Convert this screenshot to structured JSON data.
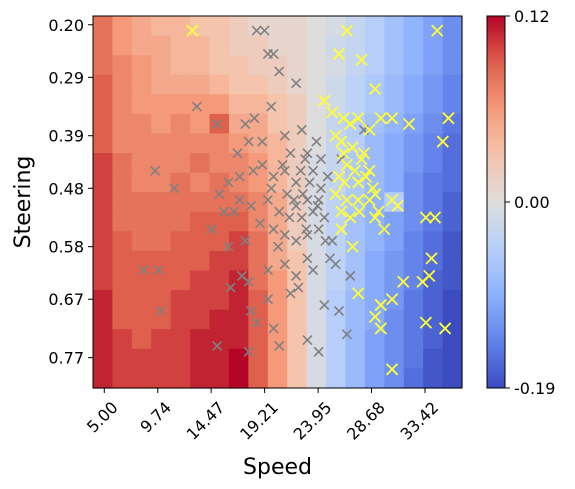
{
  "chart_data": {
    "type": "heatmap",
    "xlabel": "Speed",
    "ylabel": "Steering",
    "x_ticks": [
      "5.00",
      "9.74",
      "14.47",
      "19.21",
      "23.95",
      "28.68",
      "33.42"
    ],
    "y_ticks": [
      "0.20",
      "0.29",
      "0.39",
      "0.48",
      "0.58",
      "0.67",
      "0.77"
    ],
    "x_range": [
      4.0,
      36.7
    ],
    "y_range": [
      0.185,
      0.822
    ],
    "x_tick_values": [
      5.0,
      9.74,
      14.47,
      19.21,
      23.95,
      28.68,
      33.42
    ],
    "y_tick_values": [
      0.2,
      0.29,
      0.39,
      0.48,
      0.58,
      0.67,
      0.77
    ],
    "colorbar": {
      "colormap": "coolwarm",
      "min": -0.19,
      "max": 0.12,
      "ticks": [
        "0.12",
        "0.00",
        "-0.19"
      ],
      "tick_values": [
        0.12,
        0.0,
        -0.19
      ]
    },
    "grid": false,
    "rows": 19,
    "cols": 19,
    "heatmap_values": [
      [
        0.08,
        0.06,
        0.05,
        0.04,
        0.04,
        0.03,
        0.03,
        0.02,
        0.01,
        0.01,
        0.01,
        0.0,
        -0.01,
        -0.03,
        -0.05,
        -0.07,
        -0.09,
        -0.11,
        -0.13
      ],
      [
        0.08,
        0.06,
        0.05,
        0.05,
        0.04,
        0.04,
        0.03,
        0.02,
        0.02,
        0.01,
        0.01,
        0.0,
        -0.02,
        -0.03,
        -0.05,
        -0.07,
        -0.09,
        -0.11,
        -0.13
      ],
      [
        0.08,
        0.07,
        0.06,
        0.05,
        0.04,
        0.04,
        0.03,
        0.03,
        0.02,
        0.02,
        0.01,
        0.0,
        -0.01,
        -0.03,
        -0.05,
        -0.07,
        -0.09,
        -0.11,
        -0.13
      ],
      [
        0.09,
        0.07,
        0.06,
        0.05,
        0.05,
        0.05,
        0.04,
        0.03,
        0.03,
        0.02,
        0.01,
        0.0,
        -0.02,
        -0.04,
        -0.06,
        -0.08,
        -0.1,
        -0.12,
        -0.14
      ],
      [
        0.09,
        0.07,
        0.06,
        0.06,
        0.06,
        0.06,
        0.06,
        0.04,
        0.04,
        0.03,
        0.02,
        0.0,
        -0.02,
        -0.04,
        -0.06,
        -0.08,
        -0.1,
        -0.12,
        -0.14
      ],
      [
        0.09,
        0.07,
        0.07,
        0.06,
        0.07,
        0.06,
        0.09,
        0.05,
        0.05,
        0.03,
        0.02,
        0.0,
        -0.03,
        -0.05,
        -0.07,
        -0.09,
        -0.11,
        -0.13,
        -0.15
      ],
      [
        0.09,
        0.07,
        0.07,
        0.07,
        0.07,
        0.07,
        0.07,
        0.06,
        0.05,
        0.04,
        0.02,
        0.0,
        -0.03,
        -0.05,
        -0.08,
        -0.1,
        -0.12,
        -0.14,
        -0.16
      ],
      [
        0.1,
        0.08,
        0.07,
        0.07,
        0.07,
        0.08,
        0.07,
        0.07,
        0.06,
        0.04,
        0.02,
        -0.01,
        -0.03,
        -0.06,
        -0.08,
        -0.1,
        -0.12,
        -0.14,
        -0.16
      ],
      [
        0.1,
        0.08,
        0.07,
        0.07,
        0.08,
        0.07,
        0.08,
        0.07,
        0.06,
        0.04,
        0.02,
        -0.01,
        -0.03,
        -0.06,
        -0.08,
        -0.1,
        -0.13,
        -0.15,
        -0.16
      ],
      [
        0.1,
        0.08,
        0.08,
        0.08,
        0.08,
        0.08,
        0.08,
        0.08,
        0.07,
        0.05,
        0.02,
        -0.01,
        -0.04,
        -0.06,
        -0.09,
        -0.05,
        -0.13,
        -0.15,
        -0.17
      ],
      [
        0.1,
        0.08,
        0.08,
        0.08,
        0.08,
        0.09,
        0.09,
        0.09,
        0.07,
        0.05,
        0.02,
        -0.01,
        -0.04,
        -0.07,
        -0.09,
        -0.11,
        -0.13,
        -0.15,
        -0.17
      ],
      [
        0.1,
        0.09,
        0.08,
        0.08,
        0.09,
        0.09,
        0.09,
        0.1,
        0.08,
        0.05,
        0.02,
        -0.01,
        -0.04,
        -0.07,
        -0.09,
        -0.11,
        -0.14,
        -0.16,
        -0.18
      ],
      [
        0.1,
        0.09,
        0.09,
        0.09,
        0.09,
        0.09,
        0.1,
        0.1,
        0.08,
        0.05,
        0.03,
        -0.01,
        -0.04,
        -0.07,
        -0.1,
        -0.12,
        -0.14,
        -0.16,
        -0.18
      ],
      [
        0.1,
        0.09,
        0.09,
        0.09,
        0.09,
        0.1,
        0.1,
        0.11,
        0.08,
        0.06,
        0.03,
        -0.01,
        -0.04,
        -0.07,
        -0.1,
        -0.12,
        -0.14,
        -0.17,
        -0.18
      ],
      [
        0.11,
        0.09,
        0.09,
        0.09,
        0.1,
        0.1,
        0.1,
        0.11,
        0.09,
        0.06,
        0.03,
        -0.01,
        -0.05,
        -0.08,
        -0.1,
        -0.12,
        -0.15,
        -0.17,
        -0.19
      ],
      [
        0.11,
        0.09,
        0.09,
        0.09,
        0.1,
        0.1,
        0.11,
        0.11,
        0.09,
        0.06,
        0.03,
        -0.01,
        -0.05,
        -0.08,
        -0.1,
        -0.13,
        -0.15,
        -0.17,
        -0.19
      ],
      [
        0.11,
        0.1,
        0.09,
        0.1,
        0.1,
        0.11,
        0.11,
        0.11,
        0.09,
        0.06,
        0.03,
        -0.01,
        -0.05,
        -0.08,
        -0.11,
        -0.13,
        -0.15,
        -0.17,
        -0.19
      ],
      [
        0.11,
        0.1,
        0.1,
        0.1,
        0.1,
        0.11,
        0.11,
        0.12,
        0.09,
        0.06,
        0.03,
        -0.01,
        -0.05,
        -0.08,
        -0.11,
        -0.13,
        -0.15,
        -0.18,
        -0.19
      ],
      [
        0.11,
        0.1,
        0.1,
        0.1,
        0.1,
        0.11,
        0.11,
        0.12,
        0.09,
        0.06,
        0.03,
        -0.01,
        -0.05,
        -0.08,
        -0.11,
        -0.13,
        -0.16,
        -0.18,
        -0.19
      ]
    ],
    "series": [
      {
        "marker": "x",
        "color": "#808080",
        "points": [
          [
            18.5,
            0.21
          ],
          [
            19.2,
            0.21
          ],
          [
            19.5,
            0.25
          ],
          [
            20.0,
            0.25
          ],
          [
            20.5,
            0.28
          ],
          [
            13.2,
            0.34
          ],
          [
            15.0,
            0.37
          ],
          [
            17.5,
            0.37
          ],
          [
            18.3,
            0.36
          ],
          [
            19.8,
            0.34
          ],
          [
            22.0,
            0.3
          ],
          [
            21.5,
            0.42
          ],
          [
            22.5,
            0.38
          ],
          [
            23.8,
            0.4
          ],
          [
            9.5,
            0.45
          ],
          [
            11.2,
            0.48
          ],
          [
            16.0,
            0.47
          ],
          [
            17.0,
            0.46
          ],
          [
            18.2,
            0.45
          ],
          [
            19.0,
            0.44
          ],
          [
            20.0,
            0.46
          ],
          [
            21.0,
            0.45
          ],
          [
            22.0,
            0.47
          ],
          [
            22.8,
            0.43
          ],
          [
            23.5,
            0.45
          ],
          [
            24.2,
            0.48
          ],
          [
            16.5,
            0.52
          ],
          [
            18.0,
            0.51
          ],
          [
            19.5,
            0.5
          ],
          [
            20.5,
            0.52
          ],
          [
            21.2,
            0.49
          ],
          [
            22.0,
            0.51
          ],
          [
            22.5,
            0.53
          ],
          [
            23.0,
            0.5
          ],
          [
            23.5,
            0.52
          ],
          [
            24.0,
            0.5
          ],
          [
            24.5,
            0.53
          ],
          [
            20.0,
            0.55
          ],
          [
            21.0,
            0.56
          ],
          [
            22.0,
            0.57
          ],
          [
            23.0,
            0.56
          ],
          [
            24.0,
            0.55
          ],
          [
            16.0,
            0.58
          ],
          [
            17.5,
            0.57
          ],
          [
            8.5,
            0.62
          ],
          [
            9.8,
            0.62
          ],
          [
            17.2,
            0.63
          ],
          [
            19.5,
            0.62
          ],
          [
            21.0,
            0.61
          ],
          [
            22.0,
            0.63
          ],
          [
            23.5,
            0.62
          ],
          [
            25.5,
            0.61
          ],
          [
            26.8,
            0.63
          ],
          [
            16.2,
            0.65
          ],
          [
            17.8,
            0.64
          ],
          [
            19.5,
            0.67
          ],
          [
            21.5,
            0.66
          ],
          [
            24.5,
            0.68
          ],
          [
            25.8,
            0.69
          ],
          [
            10.0,
            0.69
          ],
          [
            18.5,
            0.71
          ],
          [
            20.0,
            0.72
          ],
          [
            26.5,
            0.73
          ],
          [
            15.0,
            0.75
          ],
          [
            17.8,
            0.76
          ],
          [
            20.5,
            0.75
          ],
          [
            23.0,
            0.74
          ],
          [
            24.0,
            0.76
          ],
          [
            21.0,
            0.39
          ],
          [
            23.0,
            0.42
          ],
          [
            24.8,
            0.46
          ],
          [
            22.6,
            0.49
          ],
          [
            21.8,
            0.5
          ],
          [
            23.2,
            0.47
          ],
          [
            22.4,
            0.45
          ],
          [
            23.9,
            0.51
          ],
          [
            21.4,
            0.53
          ],
          [
            19.8,
            0.48
          ],
          [
            20.8,
            0.44
          ],
          [
            22.9,
            0.55
          ],
          [
            24.6,
            0.57
          ],
          [
            20.4,
            0.58
          ],
          [
            18.8,
            0.54
          ],
          [
            17.0,
            0.5
          ],
          [
            15.6,
            0.52
          ],
          [
            16.8,
            0.42
          ],
          [
            17.8,
            0.4
          ],
          [
            19.0,
            0.4
          ],
          [
            25.0,
            0.6
          ],
          [
            28.0,
            0.38
          ],
          [
            26.0,
            0.43
          ],
          [
            14.5,
            0.55
          ],
          [
            15.2,
            0.49
          ],
          [
            18.0,
            0.69
          ],
          [
            22.2,
            0.65
          ],
          [
            23.0,
            0.6
          ],
          [
            25.2,
            0.57
          ],
          [
            24.2,
            0.43
          ]
        ]
      },
      {
        "marker": "x",
        "color": "#ffff33",
        "points": [
          [
            12.8,
            0.21
          ],
          [
            26.5,
            0.21
          ],
          [
            25.8,
            0.25
          ],
          [
            27.8,
            0.26
          ],
          [
            34.5,
            0.21
          ],
          [
            29.0,
            0.31
          ],
          [
            24.5,
            0.33
          ],
          [
            25.2,
            0.35
          ],
          [
            26.2,
            0.36
          ],
          [
            26.8,
            0.37
          ],
          [
            27.5,
            0.36
          ],
          [
            29.5,
            0.36
          ],
          [
            30.5,
            0.36
          ],
          [
            32.0,
            0.37
          ],
          [
            35.5,
            0.36
          ],
          [
            25.5,
            0.39
          ],
          [
            26.0,
            0.4
          ],
          [
            27.0,
            0.41
          ],
          [
            28.5,
            0.38
          ],
          [
            35.0,
            0.4
          ],
          [
            26.5,
            0.44
          ],
          [
            27.2,
            0.45
          ],
          [
            27.8,
            0.43
          ],
          [
            25.8,
            0.46
          ],
          [
            26.3,
            0.47
          ],
          [
            27.5,
            0.47
          ],
          [
            28.2,
            0.46
          ],
          [
            28.8,
            0.48
          ],
          [
            25.5,
            0.49
          ],
          [
            26.5,
            0.5
          ],
          [
            27.5,
            0.5
          ],
          [
            28.5,
            0.5
          ],
          [
            29.0,
            0.49
          ],
          [
            30.5,
            0.5
          ],
          [
            31.0,
            0.51
          ],
          [
            33.5,
            0.53
          ],
          [
            34.3,
            0.53
          ],
          [
            26.8,
            0.53
          ],
          [
            27.6,
            0.52
          ],
          [
            29.0,
            0.53
          ],
          [
            26.0,
            0.55
          ],
          [
            29.8,
            0.55
          ],
          [
            34.0,
            0.6
          ],
          [
            31.5,
            0.64
          ],
          [
            33.2,
            0.64
          ],
          [
            33.8,
            0.63
          ],
          [
            27.5,
            0.66
          ],
          [
            29.5,
            0.68
          ],
          [
            30.5,
            0.67
          ],
          [
            29.0,
            0.7
          ],
          [
            33.5,
            0.71
          ],
          [
            35.2,
            0.72
          ],
          [
            29.5,
            0.72
          ],
          [
            30.5,
            0.79
          ],
          [
            28.0,
            0.42
          ],
          [
            26.0,
            0.52
          ],
          [
            27.0,
            0.58
          ],
          [
            28.5,
            0.45
          ],
          [
            29.3,
            0.52
          ],
          [
            26.2,
            0.42
          ]
        ]
      }
    ]
  }
}
